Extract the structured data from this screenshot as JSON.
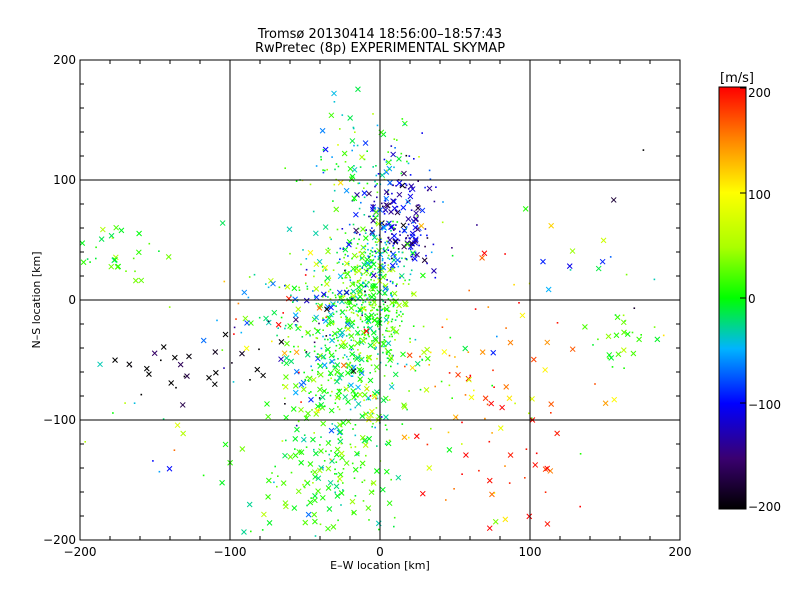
{
  "chart_data": {
    "type": "scatter",
    "title": "Tromsø 20130414 18:56:00–18:57:43",
    "subtitle": "RwPretec (8p) EXPERIMENTAL SKYMAP",
    "xlabel": "E–W location [km]",
    "ylabel": "N–S location [km]",
    "xlim": [
      -200,
      200
    ],
    "ylim": [
      -200,
      200
    ],
    "x_ticks": [
      "−200",
      "−100",
      "0",
      "100",
      "200"
    ],
    "y_ticks": [
      "−200",
      "−100",
      "0",
      "100",
      "200"
    ],
    "grid": true,
    "colorbar": {
      "label": "[m/s]",
      "range": [
        -200,
        200
      ],
      "ticks": [
        "200",
        "100",
        "0",
        "−100",
        "−200"
      ]
    },
    "clusters": [
      {
        "cx": -20,
        "cy": -35,
        "sx": 22,
        "sy": 45,
        "v": 0,
        "vs": 30,
        "n": 520,
        "cross": 0.35
      },
      {
        "cx": -5,
        "cy": 10,
        "sx": 12,
        "sy": 25,
        "v": 20,
        "vs": 25,
        "n": 260,
        "cross": 0.15
      },
      {
        "cx": 15,
        "cy": 65,
        "sx": 13,
        "sy": 22,
        "v": -120,
        "vs": 35,
        "n": 170,
        "cross": 0.35
      },
      {
        "cx": -10,
        "cy": 110,
        "sx": 18,
        "sy": 25,
        "v": -10,
        "vs": 50,
        "n": 110,
        "cross": 0.3
      },
      {
        "cx": 0,
        "cy": 35,
        "sx": 12,
        "sy": 15,
        "v": -60,
        "vs": 30,
        "n": 90,
        "cross": 0.2
      },
      {
        "cx": -35,
        "cy": -140,
        "sx": 25,
        "sy": 30,
        "v": 10,
        "vs": 25,
        "n": 150,
        "cross": 0.5
      },
      {
        "cx": -60,
        "cy": -20,
        "sx": 25,
        "sy": 30,
        "v": 0,
        "vs": 120,
        "n": 90,
        "cross": 0.5
      },
      {
        "cx": 60,
        "cy": -60,
        "sx": 45,
        "sy": 50,
        "v": 120,
        "vs": 70,
        "n": 100,
        "cross": 0.4
      },
      {
        "cx": 95,
        "cy": -155,
        "sx": 25,
        "sy": 35,
        "v": 190,
        "vs": 20,
        "n": 25,
        "cross": 0.7
      },
      {
        "cx": 160,
        "cy": -30,
        "sx": 15,
        "sy": 20,
        "v": 10,
        "vs": 20,
        "n": 25,
        "cross": 0.6
      },
      {
        "cx": -175,
        "cy": 40,
        "sx": 15,
        "sy": 15,
        "v": 10,
        "vs": 25,
        "n": 30,
        "cross": 0.7
      },
      {
        "cx": -120,
        "cy": -55,
        "sx": 35,
        "sy": 15,
        "v": -200,
        "vs": 20,
        "n": 30,
        "cross": 0.7
      },
      {
        "cx": -140,
        "cy": -140,
        "sx": 40,
        "sy": 40,
        "v": 0,
        "vs": 60,
        "n": 20,
        "cross": 0.6
      },
      {
        "cx": 130,
        "cy": 40,
        "sx": 25,
        "sy": 30,
        "v": -100,
        "vs": 120,
        "n": 15,
        "cross": 0.6
      }
    ]
  }
}
